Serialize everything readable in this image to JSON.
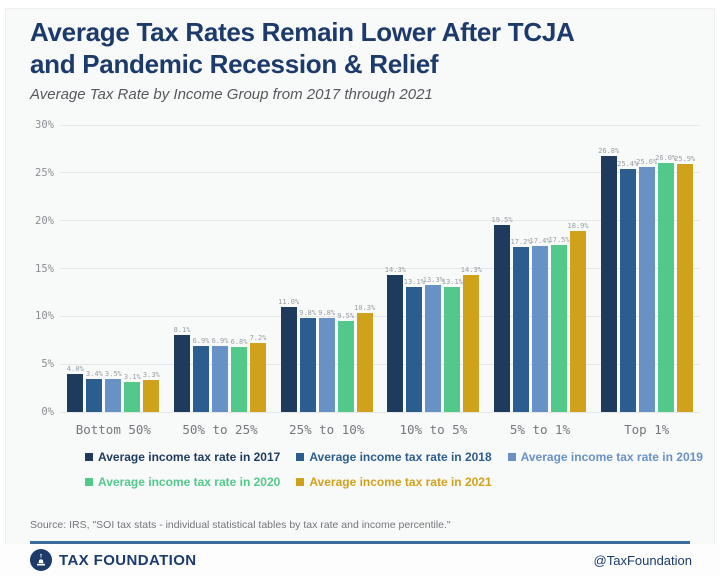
{
  "header": {
    "title_line1": "Average Tax Rates Remain Lower After TCJA",
    "title_line2": "and Pandemic Recession & Relief",
    "subtitle": "Average Tax Rate by Income Group from 2017 through 2021"
  },
  "chart_data": {
    "type": "bar",
    "title": "Average Tax Rates Remain Lower After TCJA and Pandemic Recession & Relief",
    "subtitle": "Average Tax Rate by Income Group from 2017 through 2021",
    "categories": [
      "Bottom 50%",
      "50% to 25%",
      "25% to 10%",
      "10% to 5%",
      "5% to 1%",
      "Top 1%"
    ],
    "series": [
      {
        "name": "Average income tax rate in 2017",
        "color": "#1e3a5c",
        "values": [
          4.0,
          8.1,
          11.0,
          14.3,
          19.5,
          26.8
        ]
      },
      {
        "name": "Average income tax rate in 2018",
        "color": "#2c5d8f",
        "values": [
          3.4,
          6.9,
          9.8,
          13.1,
          17.2,
          25.4
        ]
      },
      {
        "name": "Average income tax rate in 2019",
        "color": "#6892c5",
        "values": [
          3.5,
          6.9,
          9.8,
          13.3,
          17.4,
          25.6
        ]
      },
      {
        "name": "Average income tax rate in 2020",
        "color": "#52c98a",
        "values": [
          3.1,
          6.8,
          9.5,
          13.1,
          17.5,
          26.0
        ]
      },
      {
        "name": "Average income tax rate in 2021",
        "color": "#d0a11b",
        "values": [
          3.3,
          7.2,
          10.3,
          14.3,
          18.9,
          25.9
        ]
      }
    ],
    "xlabel": "",
    "ylabel": "",
    "ylim": [
      0,
      30
    ],
    "ytick_step": 5,
    "ytick_suffix": "%",
    "value_suffix": "%",
    "grid": true,
    "data_labels": true,
    "legend_position": "bottom"
  },
  "source_note": "Source: IRS, \"SOI tax stats - individual statistical tables by tax rate and income percentile.\"",
  "footer": {
    "brand": "TAX FOUNDATION",
    "handle": "@TaxFoundation",
    "logo_icon": "capitol-dome-icon"
  },
  "theme": {
    "navy": "#1c3b6b",
    "card_background": "#f8f9f9",
    "grid_color": "#e4e6e8",
    "tick_text": "#8a8f94",
    "data_label_text": "#9aa0a5",
    "divider": "#3d6b9c"
  }
}
